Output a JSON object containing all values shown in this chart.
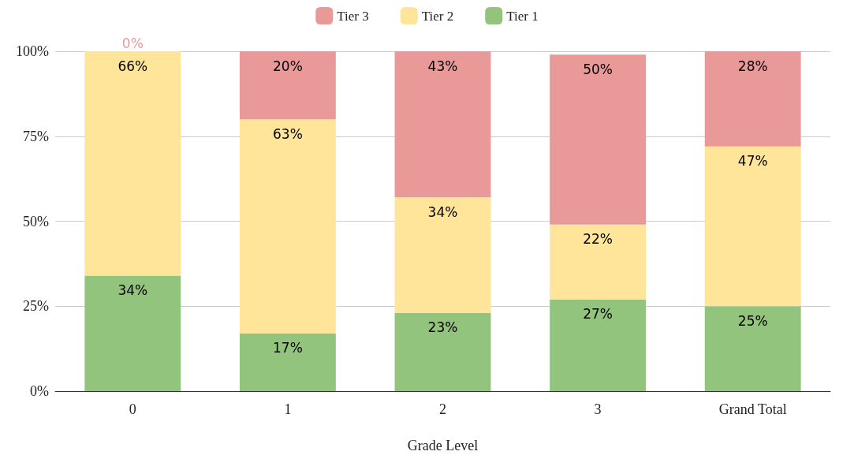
{
  "chart_data": {
    "type": "bar",
    "stacked": true,
    "xlabel": "Grade Level",
    "categories": [
      "0",
      "1",
      "2",
      "3",
      "Grand Total"
    ],
    "series": [
      {
        "name": "Tier 1",
        "color": "#93c47d",
        "values": [
          34,
          17,
          23,
          27,
          25
        ],
        "value_labels": [
          "34%",
          "17%",
          "23%",
          "27%",
          "25%"
        ]
      },
      {
        "name": "Tier 2",
        "color": "#ffe599",
        "values": [
          66,
          63,
          34,
          22,
          47
        ],
        "value_labels": [
          "66%",
          "63%",
          "34%",
          "22%",
          "47%"
        ]
      },
      {
        "name": "Tier 3",
        "color": "#ea9999",
        "values": [
          0,
          20,
          43,
          50,
          28
        ],
        "value_labels": [
          "0%",
          "20%",
          "43%",
          "50%",
          "28%"
        ]
      }
    ],
    "ylim": [
      0,
      100
    ],
    "yticks": [
      {
        "value": 0,
        "label": "0%"
      },
      {
        "value": 25,
        "label": "25%"
      },
      {
        "value": 50,
        "label": "50%"
      },
      {
        "value": 75,
        "label": "75%"
      },
      {
        "value": 100,
        "label": "100%"
      }
    ],
    "grid": "y",
    "legend": "top"
  }
}
